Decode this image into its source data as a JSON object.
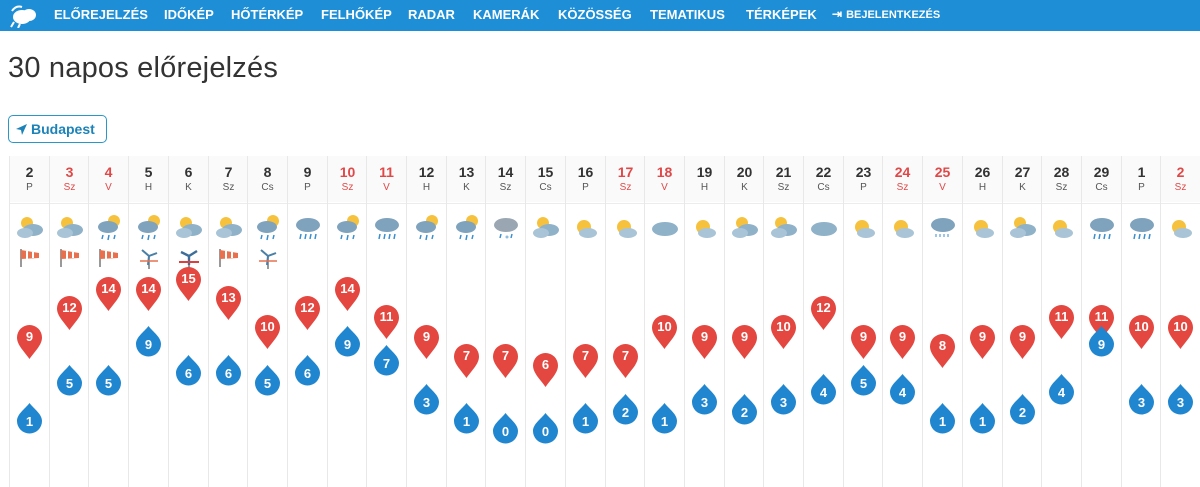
{
  "header": {
    "logo": "cloud-logo-icon",
    "nav": [
      "ELŐREJELZÉS",
      "IDŐKÉP",
      "HŐTÉRKÉP",
      "FELHŐKÉP",
      "RADAR",
      "KAMERÁK",
      "KÖZÖSSÉG",
      "TEMATIKUS",
      "TÉRKÉPEK"
    ],
    "login": "BEJELENTKEZÉS",
    "bar_color": "#1e8fd6"
  },
  "page_title": "30 napos előrejelzés",
  "city_button": {
    "label": "Budapest",
    "icon": "location-arrow-icon"
  },
  "colors": {
    "max_pin": "#e3473f",
    "min_drop": "#1f86cf",
    "weekend_text": "#e04848"
  },
  "days": [
    {
      "day": "2",
      "wd": "P",
      "icon": "partly-cloudy",
      "wind": "windsock",
      "max": 9,
      "min": 1,
      "weekend": false
    },
    {
      "day": "3",
      "wd": "Sz",
      "icon": "partly-cloudy",
      "wind": "windsock",
      "max": 12,
      "min": 5,
      "weekend": true
    },
    {
      "day": "4",
      "wd": "V",
      "icon": "partly-cloudy-rain",
      "wind": "windsock",
      "max": 14,
      "min": 5,
      "weekend": true
    },
    {
      "day": "5",
      "wd": "H",
      "icon": "partly-cloudy-rain",
      "wind": "wind-turbine",
      "max": 14,
      "min": 9,
      "weekend": false
    },
    {
      "day": "6",
      "wd": "K",
      "icon": "partly-cloudy",
      "wind": "wind-turbine-strong",
      "max": 15,
      "min": 6,
      "weekend": false
    },
    {
      "day": "7",
      "wd": "Sz",
      "icon": "partly-cloudy",
      "wind": "windsock",
      "max": 13,
      "min": 6,
      "weekend": false
    },
    {
      "day": "8",
      "wd": "Cs",
      "icon": "partly-cloudy-rain",
      "wind": "wind-turbine",
      "max": 10,
      "min": 5,
      "weekend": false
    },
    {
      "day": "9",
      "wd": "P",
      "icon": "cloud-rain",
      "wind": "",
      "max": 12,
      "min": 6,
      "weekend": false
    },
    {
      "day": "10",
      "wd": "Sz",
      "icon": "partly-cloudy-rain",
      "wind": "",
      "max": 14,
      "min": 9,
      "weekend": true
    },
    {
      "day": "11",
      "wd": "V",
      "icon": "cloud-rain",
      "wind": "",
      "max": 11,
      "min": 7,
      "weekend": true
    },
    {
      "day": "12",
      "wd": "H",
      "icon": "partly-cloudy-rain",
      "wind": "",
      "max": 9,
      "min": 3,
      "weekend": false
    },
    {
      "day": "13",
      "wd": "K",
      "icon": "partly-cloudy-rain",
      "wind": "",
      "max": 7,
      "min": 1,
      "weekend": false
    },
    {
      "day": "14",
      "wd": "Sz",
      "icon": "cloud-snow-rain",
      "wind": "",
      "max": 7,
      "min": 0,
      "weekend": false
    },
    {
      "day": "15",
      "wd": "Cs",
      "icon": "partly-cloudy",
      "wind": "",
      "max": 6,
      "min": 0,
      "weekend": false
    },
    {
      "day": "16",
      "wd": "P",
      "icon": "sun-cloud",
      "wind": "",
      "max": 7,
      "min": 1,
      "weekend": false
    },
    {
      "day": "17",
      "wd": "Sz",
      "icon": "sun-cloud",
      "wind": "",
      "max": 7,
      "min": 2,
      "weekend": true
    },
    {
      "day": "18",
      "wd": "V",
      "icon": "cloud",
      "wind": "",
      "max": 10,
      "min": 1,
      "weekend": true
    },
    {
      "day": "19",
      "wd": "H",
      "icon": "sun-cloud",
      "wind": "",
      "max": 9,
      "min": 3,
      "weekend": false
    },
    {
      "day": "20",
      "wd": "K",
      "icon": "partly-cloudy",
      "wind": "",
      "max": 9,
      "min": 2,
      "weekend": false
    },
    {
      "day": "21",
      "wd": "Sz",
      "icon": "partly-cloudy",
      "wind": "",
      "max": 10,
      "min": 3,
      "weekend": false
    },
    {
      "day": "22",
      "wd": "Cs",
      "icon": "cloud",
      "wind": "",
      "max": 12,
      "min": 4,
      "weekend": false
    },
    {
      "day": "23",
      "wd": "P",
      "icon": "sun-cloud",
      "wind": "",
      "max": 9,
      "min": 5,
      "weekend": false
    },
    {
      "day": "24",
      "wd": "Sz",
      "icon": "sun-cloud",
      "wind": "",
      "max": 9,
      "min": 4,
      "weekend": true
    },
    {
      "day": "25",
      "wd": "V",
      "icon": "cloud-drizzle",
      "wind": "",
      "max": 8,
      "min": 1,
      "weekend": true
    },
    {
      "day": "26",
      "wd": "H",
      "icon": "sun-cloud",
      "wind": "",
      "max": 9,
      "min": 1,
      "weekend": false
    },
    {
      "day": "27",
      "wd": "K",
      "icon": "partly-cloudy",
      "wind": "",
      "max": 9,
      "min": 2,
      "weekend": false
    },
    {
      "day": "28",
      "wd": "Sz",
      "icon": "sun-cloud",
      "wind": "",
      "max": 11,
      "min": 4,
      "weekend": false
    },
    {
      "day": "29",
      "wd": "Cs",
      "icon": "cloud-rain",
      "wind": "",
      "max": 11,
      "min": 9,
      "weekend": false
    },
    {
      "day": "1",
      "wd": "P",
      "icon": "cloud-rain",
      "wind": "",
      "max": 10,
      "min": 3,
      "weekend": false
    },
    {
      "day": "2",
      "wd": "Sz",
      "icon": "sun-cloud",
      "wind": "",
      "max": 10,
      "min": 3,
      "weekend": true
    }
  ]
}
